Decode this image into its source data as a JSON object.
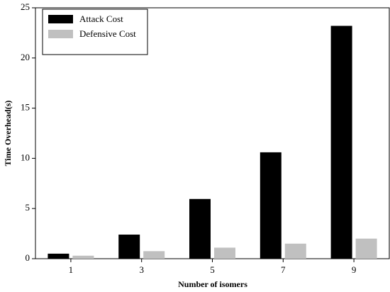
{
  "chart_data": {
    "type": "bar",
    "x_label": "Number of isomers",
    "y_label": "Time Overhead(s)",
    "categories": [
      "1",
      "3",
      "5",
      "7",
      "9"
    ],
    "series": [
      {
        "name": "Attack Cost",
        "color": "#000000",
        "values": [
          0.5,
          2.4,
          5.95,
          10.6,
          23.2
        ]
      },
      {
        "name": "Defensive Cost",
        "color": "#c0c0c0",
        "values": [
          0.3,
          0.75,
          1.1,
          1.5,
          2.0
        ]
      }
    ],
    "ylim": [
      0,
      25
    ],
    "yticks": [
      0,
      5,
      10,
      15,
      20,
      25
    ],
    "grid": false,
    "legend": "upper left"
  }
}
